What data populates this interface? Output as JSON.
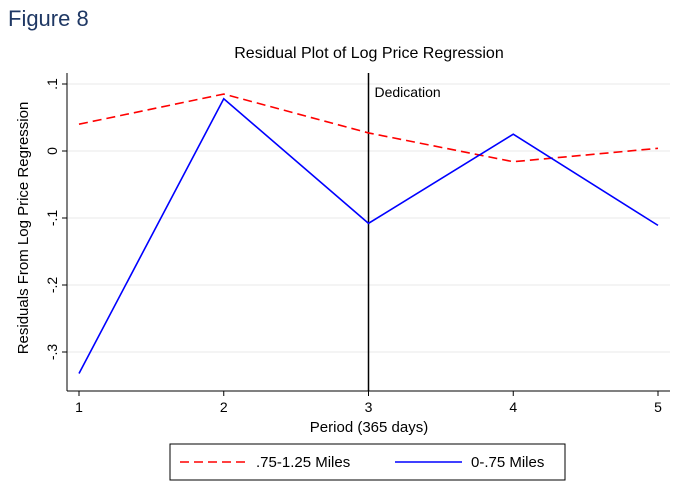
{
  "figure_label": "Figure 8",
  "chart_data": {
    "type": "line",
    "title": "Residual Plot of Log Price Regression",
    "xlabel": "Period (365 days)",
    "ylabel": "Residuals From Log Price Regression",
    "x": [
      1,
      2,
      3,
      4,
      5
    ],
    "x_ticks": [
      "1",
      "2",
      "3",
      "4",
      "5"
    ],
    "y_ticks": [
      {
        "value": 0.1,
        "label": ".1"
      },
      {
        "value": 0,
        "label": "0"
      },
      {
        "value": -0.1,
        "label": "-.1"
      },
      {
        "value": -0.2,
        "label": "-.2"
      },
      {
        "value": -0.3,
        "label": "-.3"
      }
    ],
    "xlim": [
      1,
      5
    ],
    "ylim": [
      -0.34,
      0.11
    ],
    "grid": true,
    "series": [
      {
        "name": ".75-1.25 Miles",
        "values": [
          0.04,
          0.085,
          0.027,
          -0.016,
          0.004
        ],
        "color": "#ff0000",
        "style": "dashed"
      },
      {
        "name": "0-.75 Miles",
        "values": [
          -0.332,
          0.078,
          -0.108,
          0.025,
          -0.111
        ],
        "color": "#0000ff",
        "style": "solid"
      }
    ],
    "annotations": [
      {
        "type": "vline",
        "x": 3,
        "label": "Dedication",
        "color": "#000000"
      }
    ],
    "legend_position": "bottom"
  }
}
